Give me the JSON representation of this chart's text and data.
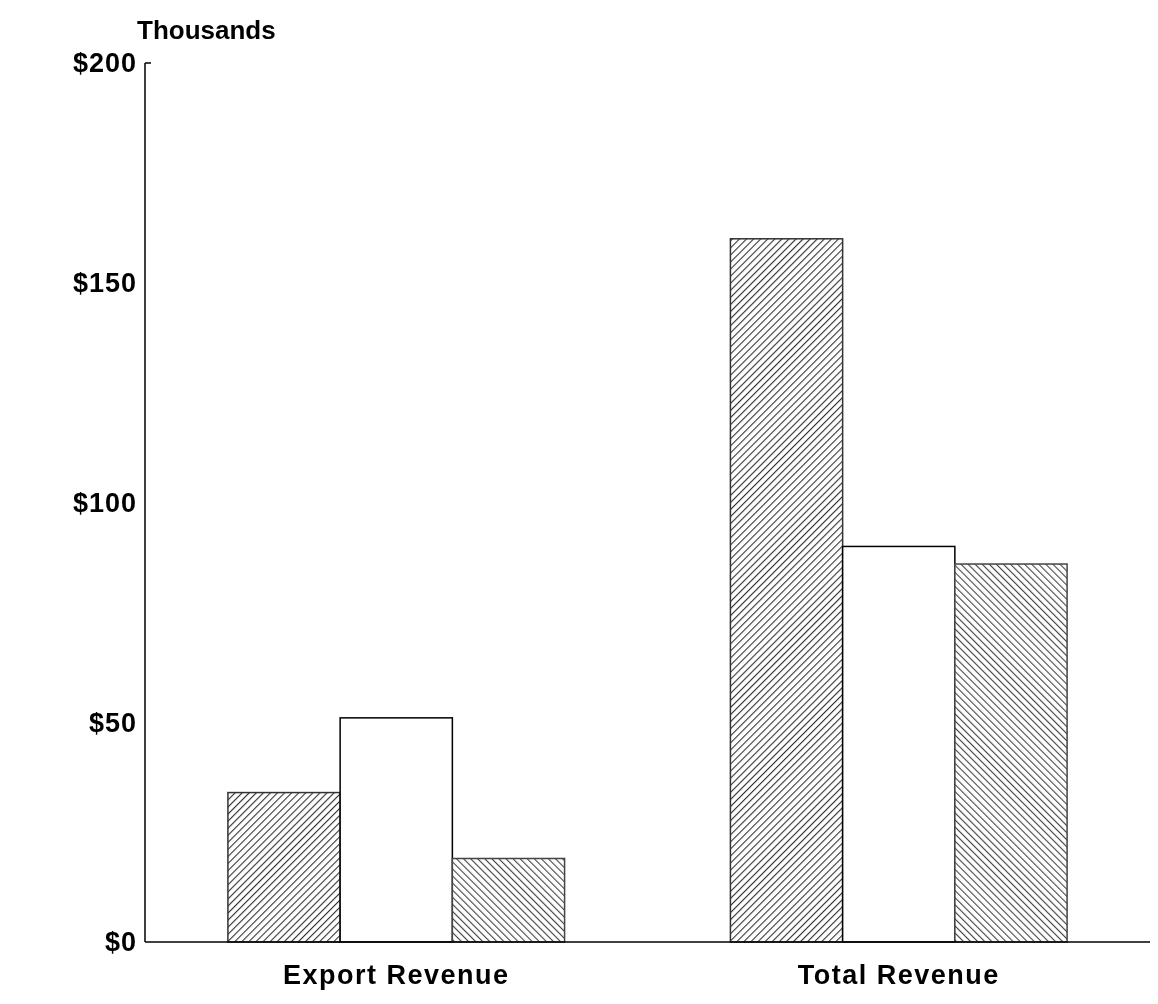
{
  "chart_data": {
    "type": "bar",
    "ylabel": "Thousands",
    "categories": [
      "Export Revenue",
      "Total Revenue"
    ],
    "series": [
      {
        "color": "#333333",
        "values": [
          34,
          160
        ]
      },
      {
        "color": "#ffffff",
        "values": [
          51,
          90
        ]
      },
      {
        "color": "#444444",
        "values": [
          19,
          86
        ]
      }
    ],
    "ylim": [
      0,
      200
    ],
    "yticks": [
      {
        "value": 0,
        "label": "$0"
      },
      {
        "value": 50,
        "label": "$50"
      },
      {
        "value": 100,
        "label": "$100"
      },
      {
        "value": 150,
        "label": "$150"
      },
      {
        "value": 200,
        "label": "$200"
      }
    ],
    "grid": false
  }
}
